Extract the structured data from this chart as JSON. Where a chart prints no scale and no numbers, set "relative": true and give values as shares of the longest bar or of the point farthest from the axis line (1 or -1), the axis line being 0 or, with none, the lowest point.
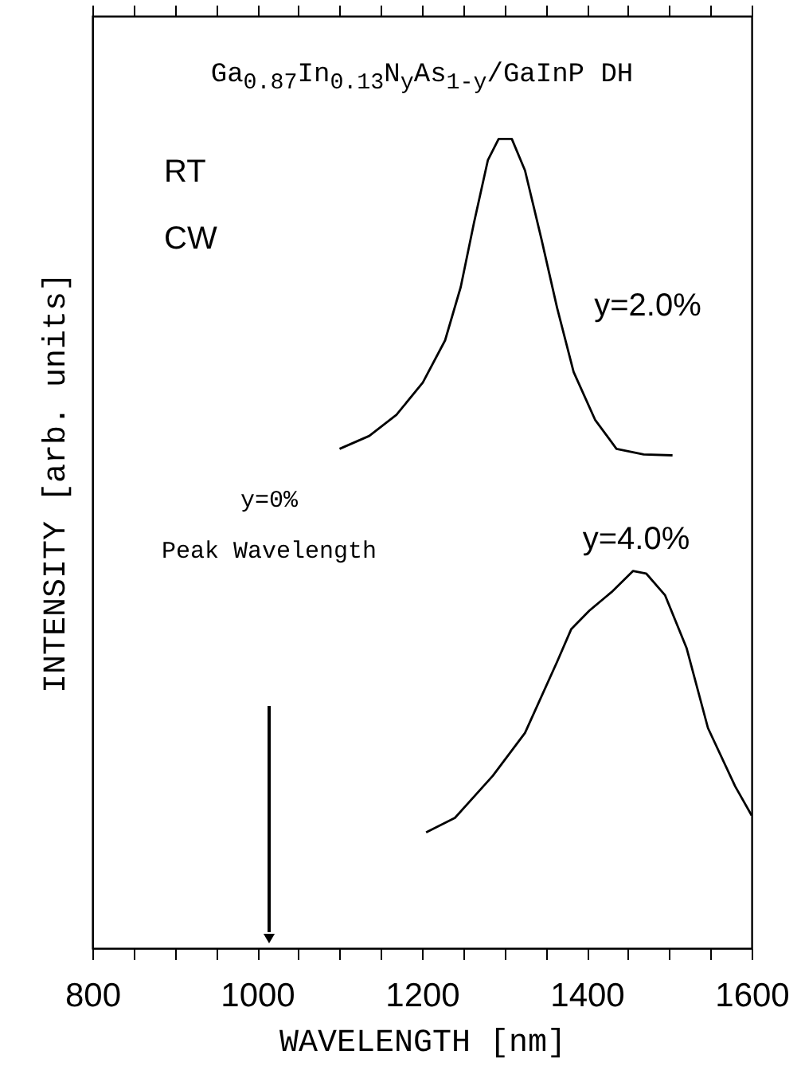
{
  "chart_data": {
    "type": "line",
    "title": "Ga$_{0.87}$In$_{0.13}$N$_{y}$As$_{1-y}$/GaInP DH",
    "xlabel": "WAVELENGTH [nm]",
    "ylabel": "INTENSITY [arb. units]",
    "relative": true,
    "grid": false,
    "marker": "none",
    "line_style": "solid",
    "xlim": [
      800,
      1600
    ],
    "xticks": [
      800,
      {
        "value": 850,
        "label": null
      },
      1000,
      {
        "value": 900,
        "label": null
      },
      {
        "value": 950,
        "label": null
      },
      {
        "value": 1050,
        "label": null
      },
      {
        "value": 1100,
        "label": null
      },
      {
        "value": 1150,
        "label": null
      },
      1200,
      {
        "value": 1250,
        "label": null
      },
      {
        "value": 1300,
        "label": null
      },
      {
        "value": 1350,
        "label": null
      },
      1400,
      {
        "value": 1450,
        "label": null
      },
      {
        "value": 1500,
        "label": null
      },
      {
        "value": 1550,
        "label": null
      },
      1600
    ],
    "annotations": [
      "RT",
      "CW",
      "y=0%",
      "Peak Wavelength"
    ],
    "series": [
      {
        "name": "y=2.0%",
        "color": "#000000",
        "x": [
          1100,
          1136,
          1169,
          1201,
          1228,
          1247,
          1263,
          1280,
          1293,
          1309,
          1325,
          1345,
          1364,
          1384,
          1410,
          1436,
          1469,
          1504
        ],
        "values": [
          0.617,
          0.633,
          0.659,
          0.699,
          0.751,
          0.817,
          0.896,
          0.974,
          1.0,
          1.0,
          0.961,
          0.876,
          0.791,
          0.712,
          0.653,
          0.617,
          0.61,
          0.609
        ]
      },
      {
        "name": "y=4.0%",
        "color": "#000000",
        "x": [
          1205,
          1240,
          1286,
          1325,
          1364,
          1381,
          1403,
          1430,
          1456,
          1472,
          1495,
          1521,
          1547,
          1580,
          1600
        ],
        "values": [
          0.143,
          0.161,
          0.213,
          0.266,
          0.354,
          0.394,
          0.417,
          0.44,
          0.466,
          0.463,
          0.436,
          0.371,
          0.272,
          0.2,
          0.164
        ]
      }
    ]
  }
}
